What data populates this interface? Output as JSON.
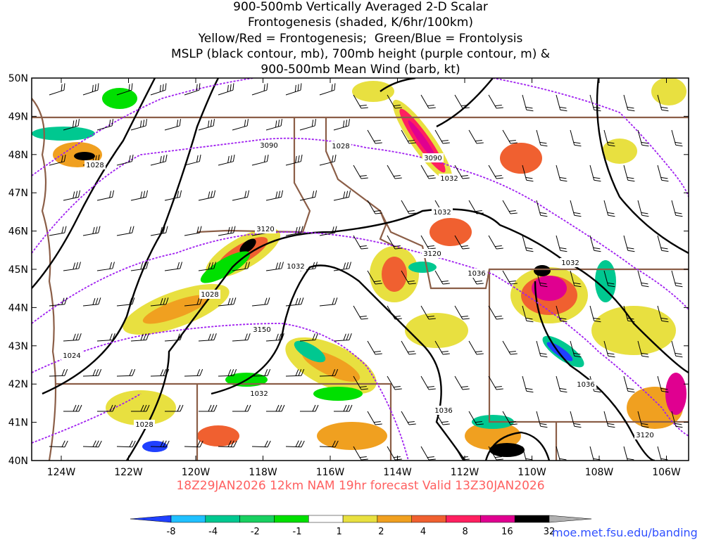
{
  "title_lines": [
    "900-500mb Vertically Averaged 2-D Scalar",
    "Frontogenesis (shaded, K/6hr/100km)",
    "Yellow/Red = Frontogenesis;  Green/Blue = Frontolysis",
    "MSLP (black contour, mb), 700mb height (purple contour, m) &",
    "900-500mb Mean Wind (barb, kt)"
  ],
  "lat_labels": [
    "50N",
    "49N",
    "48N",
    "47N",
    "46N",
    "45N",
    "44N",
    "43N",
    "42N",
    "41N",
    "40N"
  ],
  "lon_labels": [
    "124W",
    "122W",
    "120W",
    "118W",
    "116W",
    "114W",
    "112W",
    "110W",
    "108W",
    "106W"
  ],
  "valid_line": "18Z29JAN2026 12km NAM 19hr forecast Valid 13Z30JAN2026",
  "colorbar": {
    "ticks": [
      "-8",
      "-4",
      "-2",
      "-1",
      "1",
      "2",
      "4",
      "8",
      "16",
      "32"
    ],
    "colors": [
      "#2040ff",
      "#20c0ff",
      "#00c890",
      "#18d060",
      "#00e000",
      "#ffffff",
      "#e8e040",
      "#f0a020",
      "#f06030",
      "#ff2060",
      "#e00090",
      "#000000",
      "#b0b0b0"
    ]
  },
  "mslp_labels": [
    "1028",
    "1028",
    "1032",
    "1036",
    "1032",
    "1028",
    "1032",
    "1024",
    "1032",
    "1028",
    "1036",
    "1036",
    "1032"
  ],
  "height_labels": [
    "3090",
    "3090",
    "3120",
    "3120",
    "3150",
    "3120"
  ],
  "url": "moe.met.fsu.edu/banding"
}
